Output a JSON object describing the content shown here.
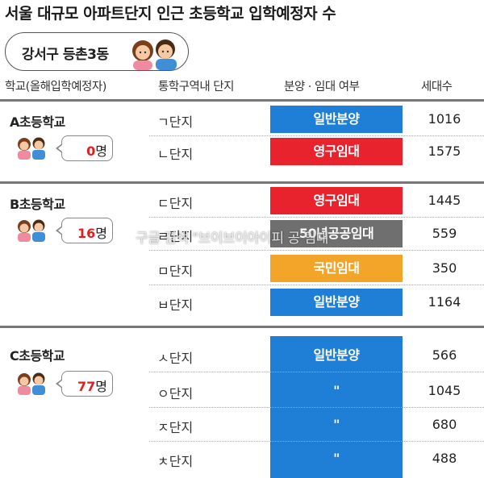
{
  "title": "서울 대규모 아파트단지 인근 초등학교 입학예정자 수",
  "district": "강서구 등촌3동",
  "headers": {
    "school": "학교(올해입학예정자)",
    "zone": "통학구역내 단지",
    "type": "분양 · 임대 여부",
    "households": "세대수"
  },
  "colors": {
    "일반분양": "#1f7fd6",
    "영구임대": "#e8232d",
    "50년공공임대": "#6f6f6f",
    "국민임대": "#f3a52a",
    "number_red": "#e02020"
  },
  "schools": [
    {
      "name": "A초등학교",
      "count": "0",
      "unit": "명",
      "rows": [
        {
          "zone": "ㄱ단지",
          "type": "일반분양",
          "households": "1016"
        },
        {
          "zone": "ㄴ단지",
          "type": "영구임대",
          "households": "1575"
        }
      ]
    },
    {
      "name": "B초등학교",
      "count": "16",
      "unit": "명",
      "rows": [
        {
          "zone": "ㄷ단지",
          "type": "영구임대",
          "households": "1445"
        },
        {
          "zone": "ㄹ단지",
          "type": "50년공공임대",
          "households": "559"
        },
        {
          "zone": "ㅁ단지",
          "type": "국민임대",
          "households": "350"
        },
        {
          "zone": "ㅂ단지",
          "type": "일반분양",
          "households": "1164"
        }
      ]
    },
    {
      "name": "C초등학교",
      "count": "77",
      "unit": "명",
      "rows": [
        {
          "zone": "ㅅ단지",
          "type": "일반분양",
          "households": "566"
        },
        {
          "zone": "ㅇ단지",
          "type": "\"",
          "households": "1045"
        },
        {
          "zone": "ㅈ단지",
          "type": "\"",
          "households": "680"
        },
        {
          "zone": "ㅊ단지",
          "type": "\"",
          "households": "488"
        }
      ]
    }
  ],
  "watermark": "구글 검색 \"브이브이아이피 공 임대"
}
